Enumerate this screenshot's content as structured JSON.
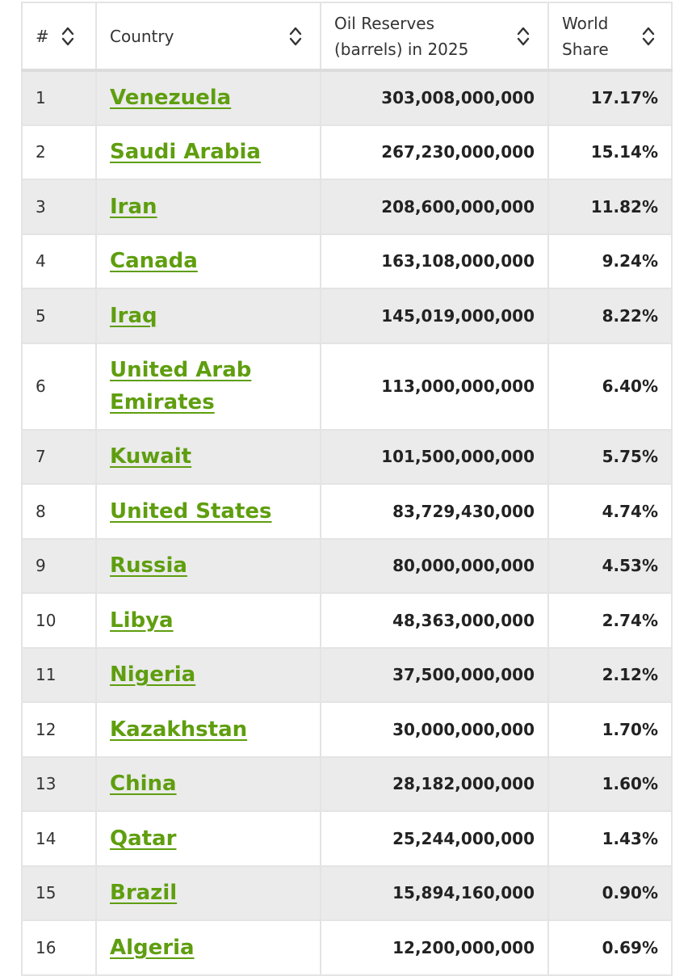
{
  "table": {
    "headers": {
      "rank": "#",
      "country": "Country",
      "oil_line1": "Oil Reserves",
      "oil_line2": "(barrels) in 2025",
      "share_line1": "World",
      "share_line2": "Share"
    },
    "sort_icon": "sort-arrows-icon",
    "link_color": "#5f9e0f",
    "rows": [
      {
        "rank": "1",
        "country": "Venezuela",
        "oil": "303,008,000,000",
        "share": "17.17%"
      },
      {
        "rank": "2",
        "country": "Saudi Arabia",
        "oil": "267,230,000,000",
        "share": "15.14%"
      },
      {
        "rank": "3",
        "country": "Iran",
        "oil": "208,600,000,000",
        "share": "11.82%"
      },
      {
        "rank": "4",
        "country": "Canada",
        "oil": "163,108,000,000",
        "share": "9.24%"
      },
      {
        "rank": "5",
        "country": "Iraq",
        "oil": "145,019,000,000",
        "share": "8.22%"
      },
      {
        "rank": "6",
        "country_line1": "United Arab",
        "country_line2": "Emirates",
        "oil": "113,000,000,000",
        "share": "6.40%"
      },
      {
        "rank": "7",
        "country": "Kuwait",
        "oil": "101,500,000,000",
        "share": "5.75%"
      },
      {
        "rank": "8",
        "country": "United States",
        "oil": "83,729,430,000",
        "share": "4.74%"
      },
      {
        "rank": "9",
        "country": "Russia",
        "oil": "80,000,000,000",
        "share": "4.53%"
      },
      {
        "rank": "10",
        "country": "Libya",
        "oil": "48,363,000,000",
        "share": "2.74%"
      },
      {
        "rank": "11",
        "country": "Nigeria",
        "oil": "37,500,000,000",
        "share": "2.12%"
      },
      {
        "rank": "12",
        "country": "Kazakhstan",
        "oil": "30,000,000,000",
        "share": "1.70%"
      },
      {
        "rank": "13",
        "country": "China",
        "oil": "28,182,000,000",
        "share": "1.60%"
      },
      {
        "rank": "14",
        "country": "Qatar",
        "oil": "25,244,000,000",
        "share": "1.43%"
      },
      {
        "rank": "15",
        "country": "Brazil",
        "oil": "15,894,160,000",
        "share": "0.90%"
      },
      {
        "rank": "16",
        "country": "Algeria",
        "oil": "12,200,000,000",
        "share": "0.69%"
      }
    ]
  }
}
